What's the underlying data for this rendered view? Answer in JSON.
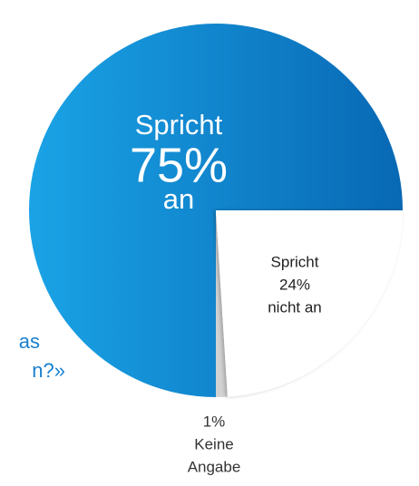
{
  "chart_data": {
    "type": "pie",
    "values": [
      75,
      24,
      1
    ],
    "value_labels": [
      "75%",
      "24%",
      "1%"
    ],
    "label_lines": [
      [
        "Spricht",
        "an"
      ],
      [
        "Spricht",
        "nicht an"
      ],
      [
        "Keine",
        "Angabe"
      ]
    ],
    "colors": [
      "#0f86d6",
      "#ffffff",
      "#d2d2d2"
    ],
    "annotation": [
      "as",
      "n?»"
    ]
  }
}
